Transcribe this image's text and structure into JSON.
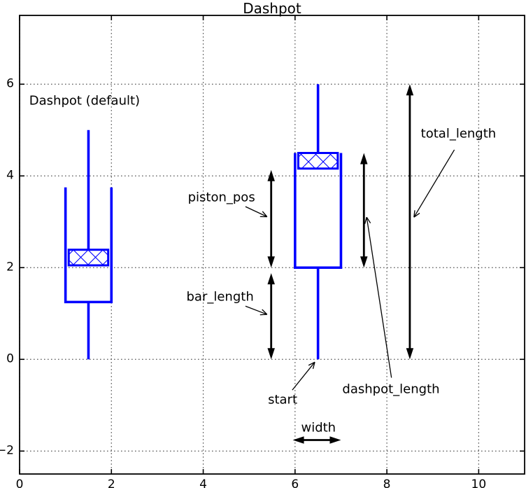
{
  "chart_data": {
    "type": "diagram",
    "title": "Dashpot",
    "xlabel": "",
    "ylabel": "",
    "xlim": [
      0,
      11
    ],
    "ylim": [
      -2.5,
      7.5
    ],
    "grid": true,
    "grid_style": "dotted",
    "xticks": [
      {
        "v": 0,
        "label": "0"
      },
      {
        "v": 2,
        "label": "2"
      },
      {
        "v": 4,
        "label": "4"
      },
      {
        "v": 6,
        "label": "6"
      },
      {
        "v": 8,
        "label": "8"
      },
      {
        "v": 10,
        "label": "10"
      }
    ],
    "yticks": [
      {
        "v": -2,
        "label": "−2"
      },
      {
        "v": 0,
        "label": "0"
      },
      {
        "v": 2,
        "label": "2"
      },
      {
        "v": 4,
        "label": "4"
      },
      {
        "v": 6,
        "label": "6"
      }
    ],
    "colors": {
      "shape": "#0000ff",
      "annotation": "#000000",
      "grid": "#555555"
    },
    "dashpots": [
      {
        "name": "default",
        "lines": [
          [
            [
              1.5,
              0
            ],
            [
              1.5,
              1.25
            ]
          ],
          [
            [
              1,
              3.75
            ],
            [
              1,
              1.25
            ],
            [
              2,
              1.25
            ],
            [
              2,
              3.75
            ]
          ],
          [
            [
              1.5,
              5
            ],
            [
              1.5,
              2.39
            ]
          ]
        ],
        "piston": {
          "x1": 1.07,
          "y1": 2.05,
          "x2": 1.93,
          "y2": 2.39
        }
      },
      {
        "name": "annotated",
        "lines": [
          [
            [
              6.5,
              0
            ],
            [
              6.5,
              2
            ]
          ],
          [
            [
              6,
              4.5
            ],
            [
              6,
              2
            ],
            [
              7,
              2
            ],
            [
              7,
              4.5
            ]
          ],
          [
            [
              6.5,
              6
            ],
            [
              6.5,
              4.5
            ]
          ]
        ],
        "piston": {
          "x1": 6.07,
          "y1": 4.16,
          "x2": 6.93,
          "y2": 4.5
        }
      }
    ],
    "dimension_arrows": [
      {
        "id": "piston_pos",
        "orient": "v",
        "x": 5.48,
        "y1": 2.0,
        "y2": 4.13
      },
      {
        "id": "bar_length",
        "orient": "v",
        "x": 5.48,
        "y1": 0.0,
        "y2": 1.88
      },
      {
        "id": "dashpot_length",
        "orient": "v",
        "x": 7.5,
        "y1": 2.0,
        "y2": 4.5
      },
      {
        "id": "total_length",
        "orient": "v",
        "x": 8.5,
        "y1": 0.0,
        "y2": 6.0
      },
      {
        "id": "width",
        "orient": "h",
        "y": -1.76,
        "x1": 5.95,
        "x2": 7.0
      }
    ],
    "annotations": [
      {
        "id": "dashpot_default",
        "label": "Dashpot (default)",
        "x": 0.21,
        "y": 5.62,
        "anchor": "left"
      },
      {
        "id": "piston_pos",
        "label": "piston_pos",
        "x": 5.13,
        "y": 3.51,
        "anchor": "right",
        "leader": {
          "x1": 4.92,
          "y1": 3.33,
          "x2": 5.39,
          "y2": 3.11
        }
      },
      {
        "id": "bar_length",
        "label": "bar_length",
        "x": 5.1,
        "y": 1.34,
        "anchor": "right",
        "leader": {
          "x1": 4.92,
          "y1": 1.16,
          "x2": 5.39,
          "y2": 0.98
        }
      },
      {
        "id": "total_length",
        "label": "total_length",
        "x": 8.74,
        "y": 4.9,
        "anchor": "left",
        "leader": {
          "x1": 9.47,
          "y1": 4.57,
          "x2": 8.59,
          "y2": 3.1
        }
      },
      {
        "id": "dashpot_length",
        "label": "dashpot_length",
        "x": 7.03,
        "y": -0.67,
        "anchor": "left",
        "leader": {
          "x1": 8.1,
          "y1": -0.4,
          "x2": 7.56,
          "y2": 3.1
        }
      },
      {
        "id": "start",
        "label": "start",
        "x": 5.41,
        "y": -0.9,
        "anchor": "left",
        "leader": {
          "x1": 5.94,
          "y1": -0.67,
          "x2": 6.43,
          "y2": -0.06
        }
      },
      {
        "id": "width",
        "label": "width",
        "x": 6.51,
        "y": -1.5,
        "anchor": "middle"
      }
    ]
  }
}
